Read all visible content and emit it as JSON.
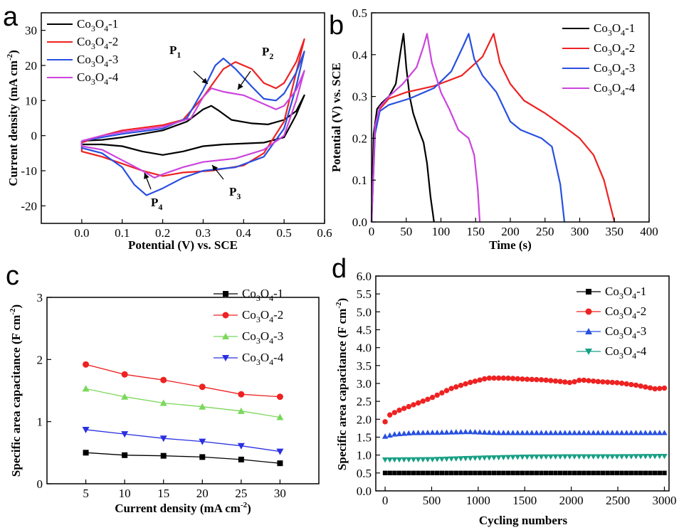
{
  "colors": {
    "s1": "#000000",
    "s2": "#ee2222",
    "s3": "#2850e0",
    "s4": "#cc44dd",
    "s3c": "#7ad85a",
    "s4c": "#2a30e0",
    "s4d": "#18a085"
  },
  "legend_labels": [
    "Co3O4-1",
    "Co3O4-2",
    "Co3O4-3",
    "Co3O4-4"
  ],
  "chart_data": [
    {
      "panel": "a",
      "type": "line",
      "xlabel": "Potential (V) vs. SCE",
      "ylabel": "Current density (mA cm-2)",
      "xlim": [
        -0.1,
        0.6
      ],
      "ylim": [
        -25,
        35
      ],
      "xticks": [
        0.0,
        0.1,
        0.2,
        0.3,
        0.4,
        0.5,
        0.6
      ],
      "yticks": [
        -20,
        -10,
        0,
        10,
        20,
        30
      ],
      "annotations": [
        {
          "label": "P",
          "sub": "1",
          "at": [
            0.33,
            16
          ]
        },
        {
          "label": "P",
          "sub": "2",
          "at": [
            0.38,
            12
          ]
        },
        {
          "label": "P",
          "sub": "3",
          "at": [
            0.36,
            -10
          ]
        },
        {
          "label": "P",
          "sub": "4",
          "at": [
            0.18,
            -12
          ]
        }
      ],
      "series": [
        {
          "name": "Co3O4-1",
          "color": "#000000",
          "points": [
            [
              0.0,
              -1.5
            ],
            [
              0.05,
              -1.2
            ],
            [
              0.1,
              -0.5
            ],
            [
              0.2,
              1.5
            ],
            [
              0.26,
              4
            ],
            [
              0.3,
              7.5
            ],
            [
              0.32,
              8.5
            ],
            [
              0.34,
              7
            ],
            [
              0.37,
              4.5
            ],
            [
              0.42,
              3.5
            ],
            [
              0.46,
              3.2
            ],
            [
              0.5,
              4.5
            ],
            [
              0.53,
              7
            ],
            [
              0.55,
              11.5
            ],
            [
              0.55,
              11.5
            ],
            [
              0.53,
              6
            ],
            [
              0.5,
              -0.5
            ],
            [
              0.45,
              -2
            ],
            [
              0.35,
              -2.5
            ],
            [
              0.3,
              -3
            ],
            [
              0.25,
              -4.5
            ],
            [
              0.2,
              -5.5
            ],
            [
              0.15,
              -4.5
            ],
            [
              0.1,
              -3
            ],
            [
              0.05,
              -2.5
            ],
            [
              0.0,
              -2.5
            ],
            [
              0.0,
              -1.5
            ]
          ]
        },
        {
          "name": "Co3O4-2",
          "color": "#ee2222",
          "points": [
            [
              0.0,
              -2
            ],
            [
              0.05,
              0
            ],
            [
              0.1,
              1.5
            ],
            [
              0.2,
              3
            ],
            [
              0.25,
              4.5
            ],
            [
              0.3,
              11
            ],
            [
              0.35,
              19
            ],
            [
              0.38,
              21
            ],
            [
              0.42,
              19
            ],
            [
              0.45,
              15
            ],
            [
              0.48,
              13.5
            ],
            [
              0.5,
              15
            ],
            [
              0.53,
              21
            ],
            [
              0.55,
              27.5
            ],
            [
              0.55,
              27.5
            ],
            [
              0.53,
              18
            ],
            [
              0.5,
              4
            ],
            [
              0.45,
              -5
            ],
            [
              0.4,
              -8.5
            ],
            [
              0.32,
              -10
            ],
            [
              0.25,
              -10.5
            ],
            [
              0.2,
              -11.5
            ],
            [
              0.15,
              -10
            ],
            [
              0.1,
              -8
            ],
            [
              0.05,
              -6
            ],
            [
              0.0,
              -4.5
            ],
            [
              0.0,
              -2
            ]
          ]
        },
        {
          "name": "Co3O4-3",
          "color": "#2850e0",
          "points": [
            [
              0.0,
              -1.5
            ],
            [
              0.05,
              -0.5
            ],
            [
              0.1,
              0.5
            ],
            [
              0.2,
              2
            ],
            [
              0.26,
              5
            ],
            [
              0.3,
              13
            ],
            [
              0.33,
              20
            ],
            [
              0.35,
              22
            ],
            [
              0.38,
              19
            ],
            [
              0.42,
              14
            ],
            [
              0.45,
              10.5
            ],
            [
              0.48,
              10
            ],
            [
              0.5,
              12
            ],
            [
              0.53,
              18
            ],
            [
              0.55,
              24
            ],
            [
              0.55,
              24
            ],
            [
              0.53,
              14
            ],
            [
              0.5,
              2
            ],
            [
              0.45,
              -6
            ],
            [
              0.38,
              -9
            ],
            [
              0.3,
              -10
            ],
            [
              0.25,
              -12
            ],
            [
              0.2,
              -15
            ],
            [
              0.16,
              -17
            ],
            [
              0.13,
              -14
            ],
            [
              0.1,
              -9
            ],
            [
              0.05,
              -5
            ],
            [
              0.0,
              -3.5
            ],
            [
              0.0,
              -1.5
            ]
          ]
        },
        {
          "name": "Co3O4-4",
          "color": "#cc44dd",
          "points": [
            [
              0.0,
              -1.5
            ],
            [
              0.05,
              0
            ],
            [
              0.1,
              1
            ],
            [
              0.2,
              2.5
            ],
            [
              0.27,
              5
            ],
            [
              0.3,
              11
            ],
            [
              0.32,
              13.5
            ],
            [
              0.35,
              12.5
            ],
            [
              0.4,
              11.5
            ],
            [
              0.45,
              9
            ],
            [
              0.48,
              7.5
            ],
            [
              0.5,
              8.5
            ],
            [
              0.53,
              13
            ],
            [
              0.55,
              18.5
            ],
            [
              0.55,
              18.5
            ],
            [
              0.53,
              10
            ],
            [
              0.5,
              0
            ],
            [
              0.45,
              -4
            ],
            [
              0.38,
              -6.5
            ],
            [
              0.3,
              -7.5
            ],
            [
              0.25,
              -9
            ],
            [
              0.2,
              -11
            ],
            [
              0.18,
              -12
            ],
            [
              0.15,
              -10
            ],
            [
              0.1,
              -7
            ],
            [
              0.05,
              -4
            ],
            [
              0.0,
              -3
            ],
            [
              0.0,
              -1.5
            ]
          ]
        }
      ]
    },
    {
      "panel": "b",
      "type": "line",
      "xlabel": "Time (s)",
      "ylabel": "Potential (V) vs. SCE",
      "xlim": [
        0,
        400
      ],
      "ylim": [
        0,
        0.5
      ],
      "xticks": [
        0,
        50,
        100,
        150,
        200,
        250,
        300,
        350,
        400
      ],
      "yticks": [
        0.0,
        0.1,
        0.2,
        0.3,
        0.4,
        0.5
      ],
      "series": [
        {
          "name": "Co3O4-1",
          "color": "#000000",
          "points": [
            [
              0,
              0
            ],
            [
              3,
              0.21
            ],
            [
              8,
              0.27
            ],
            [
              15,
              0.285
            ],
            [
              25,
              0.3
            ],
            [
              35,
              0.33
            ],
            [
              42,
              0.41
            ],
            [
              46,
              0.45
            ],
            [
              50,
              0.37
            ],
            [
              55,
              0.3
            ],
            [
              60,
              0.26
            ],
            [
              68,
              0.22
            ],
            [
              75,
              0.19
            ],
            [
              80,
              0.14
            ],
            [
              85,
              0.06
            ],
            [
              90,
              0
            ]
          ]
        },
        {
          "name": "Co3O4-2",
          "color": "#ee2222",
          "points": [
            [
              0,
              0
            ],
            [
              5,
              0.22
            ],
            [
              12,
              0.27
            ],
            [
              25,
              0.295
            ],
            [
              50,
              0.31
            ],
            [
              90,
              0.325
            ],
            [
              130,
              0.35
            ],
            [
              160,
              0.395
            ],
            [
              176,
              0.45
            ],
            [
              185,
              0.38
            ],
            [
              200,
              0.33
            ],
            [
              220,
              0.29
            ],
            [
              250,
              0.26
            ],
            [
              280,
              0.225
            ],
            [
              300,
              0.2
            ],
            [
              320,
              0.16
            ],
            [
              335,
              0.1
            ],
            [
              350,
              0
            ]
          ]
        },
        {
          "name": "Co3O4-3",
          "color": "#2850e0",
          "points": [
            [
              0,
              0
            ],
            [
              5,
              0.21
            ],
            [
              12,
              0.265
            ],
            [
              25,
              0.28
            ],
            [
              55,
              0.295
            ],
            [
              90,
              0.32
            ],
            [
              115,
              0.36
            ],
            [
              132,
              0.42
            ],
            [
              140,
              0.45
            ],
            [
              148,
              0.39
            ],
            [
              160,
              0.35
            ],
            [
              180,
              0.31
            ],
            [
              200,
              0.24
            ],
            [
              215,
              0.22
            ],
            [
              245,
              0.2
            ],
            [
              260,
              0.18
            ],
            [
              272,
              0.09
            ],
            [
              278,
              0
            ]
          ]
        },
        {
          "name": "Co3O4-4",
          "color": "#cc44dd",
          "points": [
            [
              0,
              0
            ],
            [
              5,
              0.23
            ],
            [
              12,
              0.275
            ],
            [
              25,
              0.3
            ],
            [
              45,
              0.33
            ],
            [
              65,
              0.37
            ],
            [
              75,
              0.42
            ],
            [
              80,
              0.45
            ],
            [
              87,
              0.38
            ],
            [
              100,
              0.31
            ],
            [
              112,
              0.27
            ],
            [
              125,
              0.22
            ],
            [
              140,
              0.2
            ],
            [
              148,
              0.16
            ],
            [
              153,
              0.08
            ],
            [
              156,
              0
            ]
          ]
        }
      ]
    },
    {
      "panel": "c",
      "type": "line",
      "xlabel": "Current density (mA cm-2)",
      "ylabel": "Specific area capacitance (F cm-2)",
      "xlim": [
        0,
        35
      ],
      "ylim": [
        0,
        3
      ],
      "xticks": [
        5,
        10,
        15,
        20,
        25,
        30
      ],
      "yticks": [
        0,
        1,
        2,
        3
      ],
      "legend_position": "top-right",
      "x": [
        5,
        10,
        15,
        20,
        25,
        30
      ],
      "series": [
        {
          "name": "Co3O4-1",
          "color": "#000000",
          "marker": "square",
          "values": [
            0.5,
            0.46,
            0.45,
            0.43,
            0.39,
            0.33
          ]
        },
        {
          "name": "Co3O4-2",
          "color": "#ee2222",
          "marker": "circle",
          "values": [
            1.92,
            1.76,
            1.67,
            1.56,
            1.44,
            1.4
          ]
        },
        {
          "name": "Co3O4-3",
          "color": "#7ad85a",
          "marker": "triangle-up",
          "values": [
            1.53,
            1.4,
            1.3,
            1.24,
            1.17,
            1.07
          ]
        },
        {
          "name": "Co3O4-4",
          "color": "#2a30e0",
          "marker": "triangle-down",
          "values": [
            0.87,
            0.8,
            0.73,
            0.68,
            0.61,
            0.52
          ]
        }
      ]
    },
    {
      "panel": "d",
      "type": "scatter",
      "xlabel": "Cycling numbers",
      "ylabel": "Specific area capacitance (F cm-2)",
      "xlim": [
        -100,
        3050
      ],
      "ylim": [
        0,
        6
      ],
      "xticks": [
        0,
        500,
        1000,
        1500,
        2000,
        2500,
        3000
      ],
      "yticks": [
        0.0,
        0.5,
        1.0,
        1.5,
        2.0,
        2.5,
        3.0,
        3.5,
        4.0,
        4.5,
        5.0,
        5.5,
        6.0
      ],
      "legend_position": "top-right",
      "series": [
        {
          "name": "Co3O4-1",
          "color": "#000000",
          "marker": "square",
          "x": [
            0,
            3000
          ],
          "y": [
            0.5,
            0.5
          ],
          "n_points": 60
        },
        {
          "name": "Co3O4-2",
          "color": "#ee2222",
          "marker": "circle",
          "x": [
            0,
            50,
            150,
            300,
            500,
            700,
            900,
            1100,
            1300,
            1500,
            1700,
            1900,
            2000,
            2100,
            2300,
            2500,
            2700,
            2900,
            3000
          ],
          "y": [
            1.93,
            2.12,
            2.25,
            2.4,
            2.6,
            2.85,
            3.02,
            3.15,
            3.15,
            3.12,
            3.1,
            3.05,
            3.02,
            3.1,
            3.05,
            3.02,
            2.95,
            2.85,
            2.87
          ],
          "n_points": 60
        },
        {
          "name": "Co3O4-3",
          "color": "#2850e0",
          "marker": "triangle-up",
          "x": [
            0,
            100,
            300,
            600,
            900,
            1200,
            1800,
            2400,
            3000
          ],
          "y": [
            1.52,
            1.58,
            1.62,
            1.63,
            1.65,
            1.62,
            1.62,
            1.62,
            1.62
          ],
          "n_points": 60
        },
        {
          "name": "Co3O4-4",
          "color": "#18a085",
          "marker": "triangle-down",
          "x": [
            0,
            500,
            1000,
            1500,
            2000,
            2500,
            3000
          ],
          "y": [
            0.87,
            0.88,
            0.92,
            0.95,
            0.96,
            0.96,
            0.97
          ],
          "n_points": 60
        }
      ]
    }
  ],
  "panel_letters": [
    "a",
    "b",
    "c",
    "d"
  ]
}
